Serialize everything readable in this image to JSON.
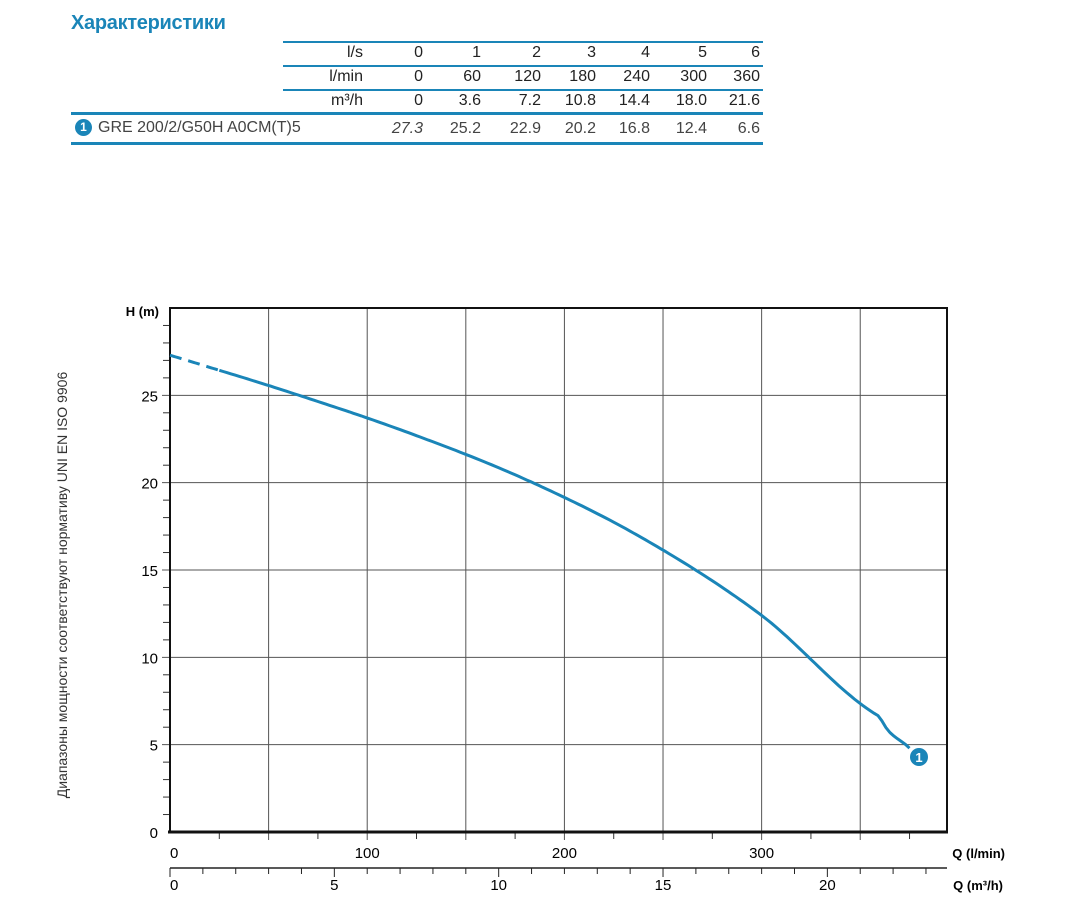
{
  "title": "Характеристики",
  "table": {
    "rows": [
      {
        "label": "l/s",
        "values": [
          "0",
          "1",
          "2",
          "3",
          "4",
          "5",
          "6"
        ]
      },
      {
        "label": "l/min",
        "values": [
          "0",
          "60",
          "120",
          "180",
          "240",
          "300",
          "360"
        ]
      },
      {
        "label": "m³/h",
        "values": [
          "0",
          "3.6",
          "7.2",
          "10.8",
          "14.4",
          "18.0",
          "21.6"
        ]
      }
    ],
    "model": {
      "badge": "1",
      "name": "GRE 200/2/G50H A0CM(T)5",
      "values": [
        "27.3",
        "25.2",
        "22.9",
        "20.2",
        "16.8",
        "12.4",
        "6.6"
      ]
    }
  },
  "side_note": "Диапазоны мощности соответствуют нормативу UNI EN ISO 9906",
  "chart_data": {
    "type": "line",
    "ylabel": "H (m)",
    "xlabel": "Q (l/min)",
    "x2label": "Q (m³/h)",
    "xlim": [
      0,
      394
    ],
    "ylim": [
      0,
      30
    ],
    "x_ticks": [
      0,
      100,
      200,
      300
    ],
    "x2_ticks": [
      0,
      5,
      10,
      15,
      20
    ],
    "y_ticks": [
      0,
      5,
      10,
      15,
      20,
      25
    ],
    "grid": true,
    "color": "#1a85b8",
    "series": [
      {
        "name": "1",
        "x": [
          0,
          60,
          120,
          180,
          240,
          300,
          360,
          375
        ],
        "y": [
          27.3,
          25.2,
          22.9,
          20.2,
          16.8,
          12.4,
          6.6,
          4.8
        ],
        "dashed_until": 25
      }
    ]
  }
}
